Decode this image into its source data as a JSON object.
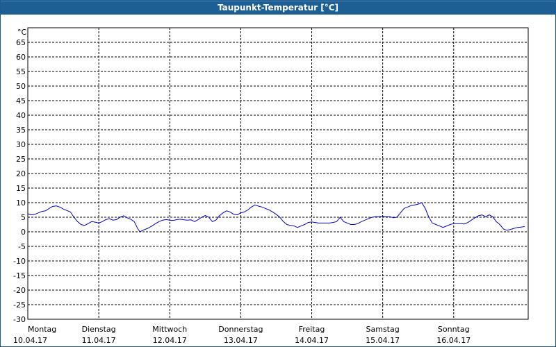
{
  "window": {
    "title": "Taupunkt-Temperatur [°C]"
  },
  "chart_data": {
    "type": "line",
    "title": "Taupunkt-Temperatur [°C]",
    "ylabel": "°C",
    "ylim": [
      -30,
      70
    ],
    "yticks": [
      65,
      60,
      55,
      50,
      45,
      40,
      35,
      30,
      25,
      20,
      15,
      10,
      5,
      0,
      -5,
      -10,
      -15,
      -20,
      -25,
      -30
    ],
    "grid": true,
    "x_days": [
      {
        "day": "Montag",
        "date": "10.04.17"
      },
      {
        "day": "Dienstag",
        "date": "11.04.17"
      },
      {
        "day": "Mittwoch",
        "date": "12.04.17"
      },
      {
        "day": "Donnerstag",
        "date": "13.04.17"
      },
      {
        "day": "Freitag",
        "date": "14.04.17"
      },
      {
        "day": "Samstag",
        "date": "15.04.17"
      },
      {
        "day": "Sonntag",
        "date": "16.04.17"
      }
    ],
    "xlim_days": [
      0,
      7.05
    ],
    "series": [
      {
        "color": "#0000cc",
        "points": [
          [
            0.0,
            6.2
          ],
          [
            0.05,
            5.8
          ],
          [
            0.1,
            6.0
          ],
          [
            0.15,
            6.5
          ],
          [
            0.2,
            7.0
          ],
          [
            0.25,
            7.2
          ],
          [
            0.3,
            8.0
          ],
          [
            0.35,
            8.7
          ],
          [
            0.4,
            8.9
          ],
          [
            0.45,
            8.5
          ],
          [
            0.5,
            7.8
          ],
          [
            0.55,
            7.3
          ],
          [
            0.6,
            6.8
          ],
          [
            0.65,
            5.0
          ],
          [
            0.7,
            3.5
          ],
          [
            0.75,
            2.5
          ],
          [
            0.8,
            2.2
          ],
          [
            0.85,
            2.8
          ],
          [
            0.9,
            3.5
          ],
          [
            0.95,
            3.3
          ],
          [
            1.0,
            3.0
          ],
          [
            1.05,
            3.5
          ],
          [
            1.1,
            4.2
          ],
          [
            1.15,
            4.5
          ],
          [
            1.2,
            4.0
          ],
          [
            1.25,
            4.2
          ],
          [
            1.3,
            5.0
          ],
          [
            1.35,
            5.5
          ],
          [
            1.4,
            4.8
          ],
          [
            1.45,
            4.3
          ],
          [
            1.5,
            3.5
          ],
          [
            1.55,
            1.0
          ],
          [
            1.58,
            0.0
          ],
          [
            1.62,
            0.5
          ],
          [
            1.7,
            1.3
          ],
          [
            1.75,
            2.0
          ],
          [
            1.8,
            2.8
          ],
          [
            1.85,
            3.5
          ],
          [
            1.9,
            4.0
          ],
          [
            1.95,
            4.2
          ],
          [
            2.0,
            4.0
          ],
          [
            2.05,
            3.9
          ],
          [
            2.1,
            4.2
          ],
          [
            2.15,
            4.3
          ],
          [
            2.2,
            4.1
          ],
          [
            2.25,
            4.0
          ],
          [
            2.3,
            4.1
          ],
          [
            2.35,
            3.5
          ],
          [
            2.4,
            4.2
          ],
          [
            2.45,
            5.0
          ],
          [
            2.5,
            5.6
          ],
          [
            2.55,
            5.0
          ],
          [
            2.6,
            3.5
          ],
          [
            2.65,
            4.0
          ],
          [
            2.7,
            5.5
          ],
          [
            2.75,
            6.5
          ],
          [
            2.8,
            7.2
          ],
          [
            2.85,
            6.8
          ],
          [
            2.9,
            6.0
          ],
          [
            2.95,
            5.8
          ],
          [
            3.0,
            6.5
          ],
          [
            3.05,
            6.8
          ],
          [
            3.1,
            7.5
          ],
          [
            3.15,
            8.5
          ],
          [
            3.2,
            9.2
          ],
          [
            3.25,
            8.8
          ],
          [
            3.3,
            8.5
          ],
          [
            3.35,
            8.0
          ],
          [
            3.4,
            7.5
          ],
          [
            3.45,
            6.8
          ],
          [
            3.5,
            6.0
          ],
          [
            3.55,
            5.0
          ],
          [
            3.6,
            3.5
          ],
          [
            3.65,
            2.5
          ],
          [
            3.7,
            2.2
          ],
          [
            3.75,
            2.0
          ],
          [
            3.8,
            1.5
          ],
          [
            3.85,
            2.0
          ],
          [
            3.9,
            2.5
          ],
          [
            3.95,
            3.2
          ],
          [
            4.0,
            3.4
          ],
          [
            4.05,
            3.2
          ],
          [
            4.1,
            3.0
          ],
          [
            4.15,
            3.0
          ],
          [
            4.2,
            3.0
          ],
          [
            4.25,
            3.0
          ],
          [
            4.3,
            3.2
          ],
          [
            4.35,
            3.5
          ],
          [
            4.4,
            5.0
          ],
          [
            4.45,
            3.5
          ],
          [
            4.5,
            3.0
          ],
          [
            4.55,
            2.5
          ],
          [
            4.6,
            2.5
          ],
          [
            4.65,
            2.8
          ],
          [
            4.7,
            3.5
          ],
          [
            4.75,
            4.0
          ],
          [
            4.8,
            4.5
          ],
          [
            4.85,
            5.0
          ],
          [
            4.9,
            5.2
          ],
          [
            4.95,
            5.2
          ],
          [
            5.0,
            5.3
          ],
          [
            5.05,
            5.2
          ],
          [
            5.1,
            5.2
          ],
          [
            5.15,
            4.8
          ],
          [
            5.2,
            5.0
          ],
          [
            5.25,
            6.5
          ],
          [
            5.3,
            8.0
          ],
          [
            5.35,
            8.5
          ],
          [
            5.4,
            9.0
          ],
          [
            5.45,
            9.2
          ],
          [
            5.5,
            9.5
          ],
          [
            5.55,
            10.0
          ],
          [
            5.6,
            8.0
          ],
          [
            5.65,
            5.0
          ],
          [
            5.7,
            3.0
          ],
          [
            5.75,
            2.5
          ],
          [
            5.8,
            2.0
          ],
          [
            5.85,
            1.5
          ],
          [
            5.9,
            2.0
          ],
          [
            5.95,
            2.5
          ],
          [
            6.0,
            2.8
          ],
          [
            6.05,
            2.8
          ],
          [
            6.1,
            2.8
          ],
          [
            6.15,
            2.7
          ],
          [
            6.2,
            3.2
          ],
          [
            6.25,
            4.0
          ],
          [
            6.3,
            4.8
          ],
          [
            6.35,
            5.5
          ],
          [
            6.4,
            5.8
          ],
          [
            6.45,
            5.2
          ],
          [
            6.5,
            5.8
          ],
          [
            6.55,
            5.2
          ],
          [
            6.6,
            3.5
          ],
          [
            6.65,
            2.5
          ],
          [
            6.7,
            1.0
          ],
          [
            6.75,
            0.5
          ],
          [
            6.8,
            0.8
          ],
          [
            6.85,
            1.2
          ],
          [
            6.9,
            1.5
          ],
          [
            6.95,
            1.6
          ],
          [
            7.0,
            1.8
          ]
        ]
      }
    ]
  }
}
